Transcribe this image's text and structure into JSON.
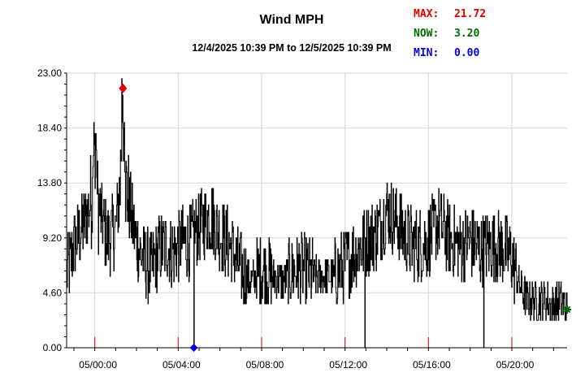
{
  "chart_data": {
    "type": "line",
    "title": "Wind MPH",
    "subtitle": "12/4/2025 10:39 PM to 12/5/2025 10:39 PM",
    "stats": [
      {
        "key": "max",
        "label": "MAX:",
        "value": "21.72",
        "color": "#e00000"
      },
      {
        "key": "now",
        "label": "NOW:",
        "value": "3.20",
        "color": "#007000"
      },
      {
        "key": "min",
        "label": "MIN:",
        "value": "0.00",
        "color": "#0000e0"
      }
    ],
    "x_start_hours": -1.35,
    "x_end_hours": 22.65,
    "ylim": [
      0,
      23
    ],
    "y_ticks": [
      "0.00",
      "4.60",
      "9.20",
      "13.80",
      "18.40",
      "23.00"
    ],
    "x_ticks": [
      {
        "hours": 0,
        "label": "05/00:00"
      },
      {
        "hours": 4,
        "label": "05/04:00"
      },
      {
        "hours": 8,
        "label": "05/08:00"
      },
      {
        "hours": 12,
        "label": "05/12:00"
      },
      {
        "hours": 16,
        "label": "05/16:00"
      },
      {
        "hours": 20,
        "label": "05/20:00"
      }
    ],
    "grid": true,
    "series": [
      {
        "color": "#000000",
        "x_hours": [
          -1.35,
          -1.0,
          -0.5,
          0.0,
          0.3,
          0.6,
          1.0,
          1.3,
          1.6,
          1.9,
          2.3,
          2.7,
          3.0,
          3.4,
          3.8,
          4.2,
          4.5,
          4.8,
          5.2,
          5.6,
          6.0,
          6.5,
          7.0,
          7.5,
          8.0,
          8.5,
          9.0,
          9.5,
          10.0,
          10.5,
          11.0,
          11.5,
          12.0,
          12.5,
          13.0,
          13.5,
          14.0,
          14.5,
          15.0,
          15.5,
          16.0,
          16.5,
          17.0,
          17.5,
          18.0,
          18.5,
          19.0,
          19.5,
          20.0,
          20.3,
          20.7,
          21.0,
          21.5,
          22.0,
          22.3,
          22.65
        ],
        "values": [
          6.0,
          8.5,
          10.5,
          13.5,
          11.0,
          9.0,
          10.0,
          15.0,
          12.5,
          9.5,
          7.5,
          6.5,
          8.0,
          8.5,
          8.0,
          9.0,
          8.5,
          9.5,
          10.5,
          11.0,
          9.5,
          8.5,
          6.5,
          5.5,
          6.5,
          6.0,
          5.5,
          6.5,
          6.5,
          6.0,
          6.0,
          6.0,
          7.0,
          8.0,
          9.0,
          9.5,
          11.5,
          10.5,
          9.0,
          8.5,
          9.0,
          10.5,
          9.0,
          8.5,
          9.0,
          8.0,
          8.5,
          8.5,
          7.5,
          5.5,
          4.0,
          4.0,
          4.0,
          3.5,
          4.0,
          3.2
        ]
      }
    ],
    "dips": [
      {
        "x_hours": 4.75,
        "value": 0.0
      },
      {
        "x_hours": 12.95,
        "value": 0.0
      },
      {
        "x_hours": 18.65,
        "value": 0.0
      }
    ],
    "markers": [
      {
        "type": "max",
        "x_hours": 1.35,
        "value": 21.72,
        "color": "#e00000"
      },
      {
        "type": "min",
        "x_hours": 4.75,
        "value": 0.0,
        "color": "#0000e0"
      },
      {
        "type": "now",
        "x_hours": 22.65,
        "value": 3.2,
        "color": "#006400"
      }
    ]
  }
}
